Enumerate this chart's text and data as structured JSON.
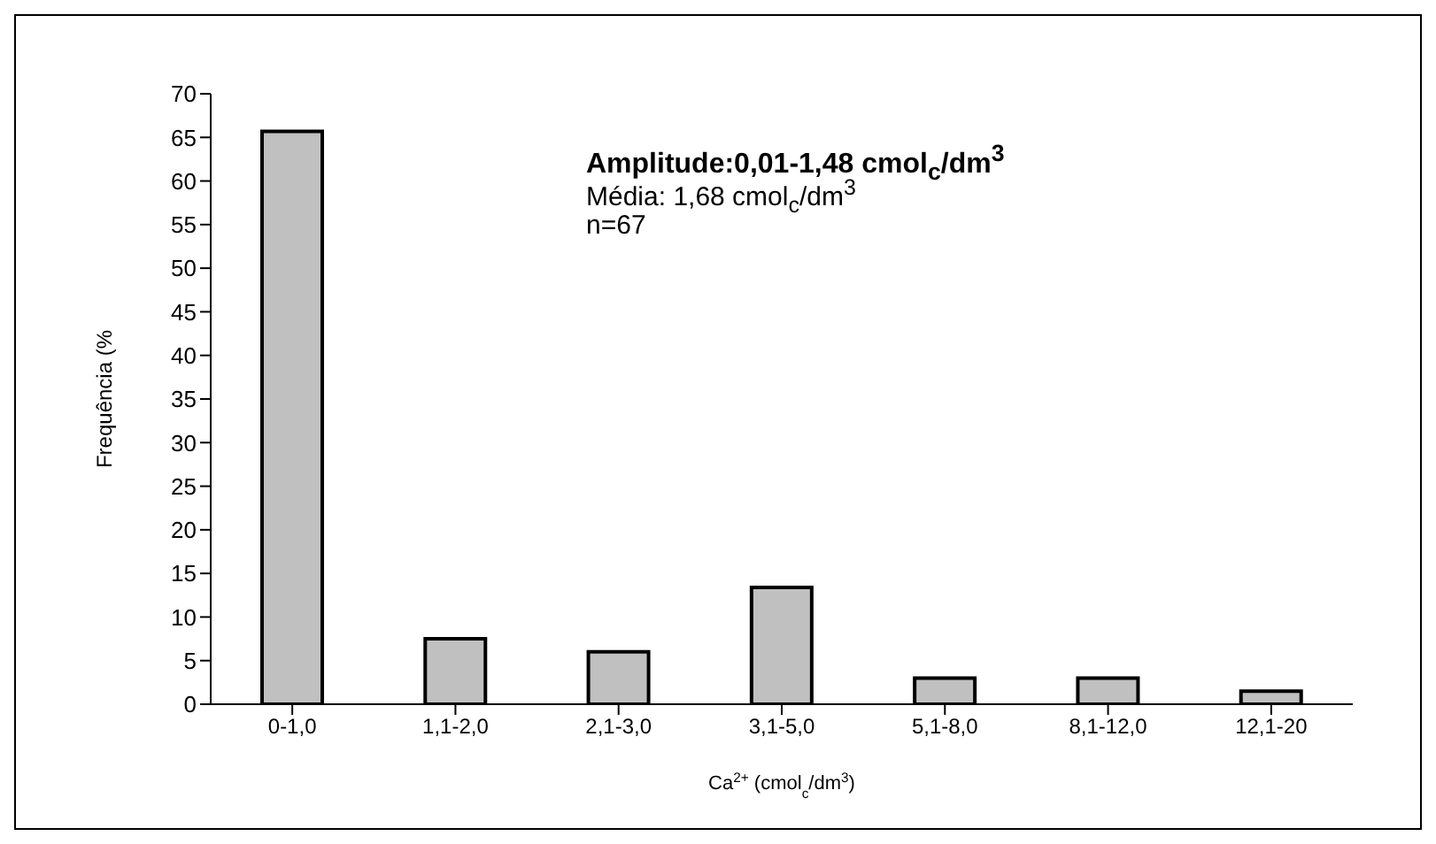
{
  "chart_data": {
    "type": "bar",
    "xlabel": "Ca$^{2+}$ (cmol$_{c}$/dm$^{3}$)",
    "ylabel": "Frequência (%",
    "categories": [
      "0-1,0",
      "1,1-2,0",
      "2,1-3,0",
      "3,1-5,0",
      "5,1-8,0",
      "8,1-12,0",
      "12,1-20"
    ],
    "values": [
      65.7,
      7.5,
      6.0,
      13.4,
      3.0,
      3.0,
      1.5
    ],
    "color": "#c0c0c0",
    "ylim": [
      0,
      70
    ],
    "yticks": [
      0,
      5,
      10,
      15,
      20,
      25,
      30,
      35,
      40,
      45,
      50,
      55,
      60,
      65,
      70
    ],
    "annotations": [
      "Amplitude:0,01-1,48 cmol$_{c}$/dm$^{3}$",
      "Média: 1,68 cmol$_{c}$/dm$^{3}$",
      "n=67"
    ]
  }
}
